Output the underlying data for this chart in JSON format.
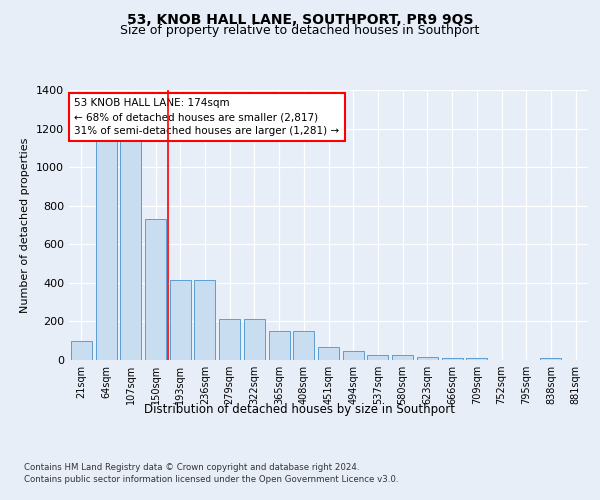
{
  "title": "53, KNOB HALL LANE, SOUTHPORT, PR9 9QS",
  "subtitle": "Size of property relative to detached houses in Southport",
  "xlabel": "Distribution of detached houses by size in Southport",
  "ylabel": "Number of detached properties",
  "categories": [
    "21sqm",
    "64sqm",
    "107sqm",
    "150sqm",
    "193sqm",
    "236sqm",
    "279sqm",
    "322sqm",
    "365sqm",
    "408sqm",
    "451sqm",
    "494sqm",
    "537sqm",
    "580sqm",
    "623sqm",
    "666sqm",
    "709sqm",
    "752sqm",
    "795sqm",
    "838sqm",
    "881sqm"
  ],
  "values": [
    100,
    1150,
    1145,
    730,
    415,
    415,
    215,
    215,
    150,
    150,
    70,
    48,
    28,
    25,
    14,
    12,
    12,
    0,
    0,
    12,
    0
  ],
  "bar_color": "#c9ddf0",
  "bar_edge_color": "#5a9fd4",
  "vline_x": 3.5,
  "vline_color": "red",
  "annotation_text": "53 KNOB HALL LANE: 174sqm\n← 68% of detached houses are smaller (2,817)\n31% of semi-detached houses are larger (1,281) →",
  "annotation_box_color": "white",
  "annotation_box_edge": "red",
  "ylim": [
    0,
    1400
  ],
  "yticks": [
    0,
    200,
    400,
    600,
    800,
    1000,
    1200,
    1400
  ],
  "footer1": "Contains HM Land Registry data © Crown copyright and database right 2024.",
  "footer2": "Contains public sector information licensed under the Open Government Licence v3.0.",
  "bg_color": "#e8eef8",
  "plot_bg_color": "#e8eef8",
  "title_fontsize": 10,
  "subtitle_fontsize": 9
}
